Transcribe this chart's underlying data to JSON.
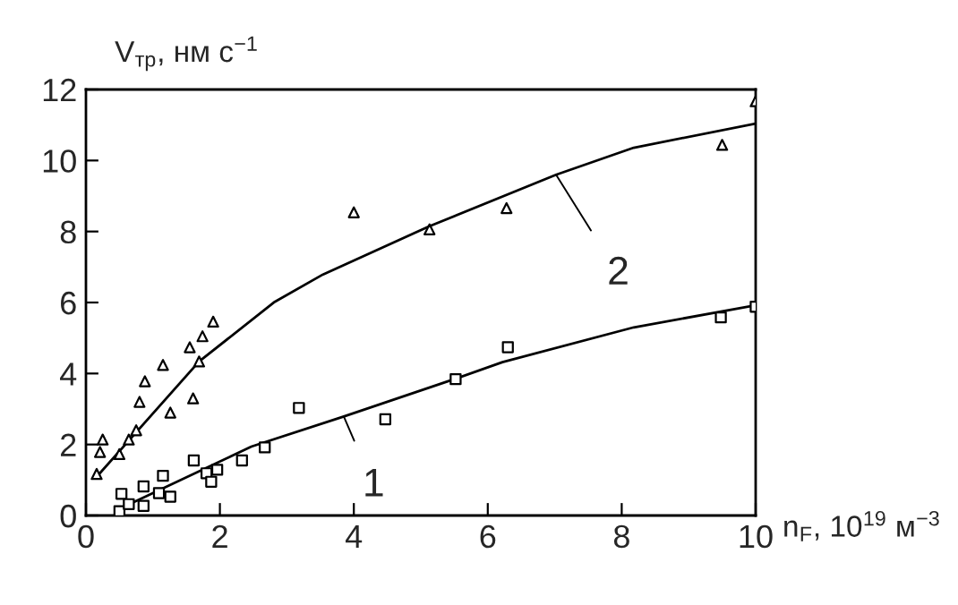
{
  "chart_data": {
    "type": "scatter",
    "xlabel": "n$_{F}$, 10$^{19}$ м$^{−3}$",
    "ylabel": "V$_{тр}$, нм с$^{−1}$",
    "xlim": [
      0,
      10
    ],
    "ylim": [
      0,
      12
    ],
    "xticks": [
      0,
      2,
      4,
      6,
      8,
      10
    ],
    "yticks": [
      0,
      2,
      4,
      6,
      8,
      10,
      12
    ],
    "grid": false,
    "legend": false,
    "series": [
      {
        "marker": "triangle",
        "color": "#000000",
        "x": [
          0.16,
          0.21,
          0.25,
          0.5,
          0.64,
          0.75,
          0.8,
          0.88,
          1.15,
          1.26,
          1.6,
          1.69,
          1.55,
          1.74,
          1.9,
          4.0,
          5.13,
          6.28,
          9.5,
          10.0
        ],
        "values": [
          1.17,
          1.79,
          2.14,
          1.73,
          2.14,
          2.4,
          3.2,
          3.78,
          4.24,
          2.9,
          3.3,
          4.34,
          4.74,
          5.05,
          5.46,
          8.54,
          8.06,
          8.66,
          10.44,
          11.67
        ]
      },
      {
        "marker": "square",
        "color": "#000000",
        "x": [
          0.5,
          0.53,
          0.64,
          0.86,
          0.86,
          1.09,
          1.15,
          1.26,
          1.61,
          1.8,
          1.87,
          1.96,
          2.33,
          2.67,
          3.18,
          4.47,
          5.52,
          6.3,
          9.48,
          10.0
        ],
        "values": [
          0.12,
          0.61,
          0.32,
          0.27,
          0.82,
          0.63,
          1.12,
          0.53,
          1.55,
          1.19,
          0.95,
          1.29,
          1.55,
          1.92,
          3.03,
          2.71,
          3.84,
          4.74,
          5.58,
          5.88
        ]
      },
      {
        "type": "line",
        "color": "#000000",
        "line_style": "solid",
        "x": [
          0.16,
          1.69,
          2.82,
          3.54,
          5.13,
          7.02,
          8.18,
          10.0
        ],
        "values": [
          1.09,
          4.34,
          6.02,
          6.79,
          8.15,
          9.6,
          10.36,
          11.04
        ]
      },
      {
        "type": "line",
        "color": "#000000",
        "line_style": "solid",
        "x": [
          0.46,
          2.47,
          3.85,
          5.5,
          6.22,
          8.18,
          10.0
        ],
        "values": [
          0.15,
          1.94,
          2.79,
          3.84,
          4.32,
          5.3,
          5.92
        ]
      }
    ],
    "annotations": [
      {
        "text": "1",
        "x": 3.85,
        "y": 2.79
      },
      {
        "text": "2",
        "x": 7.02,
        "y": 9.6
      }
    ]
  }
}
